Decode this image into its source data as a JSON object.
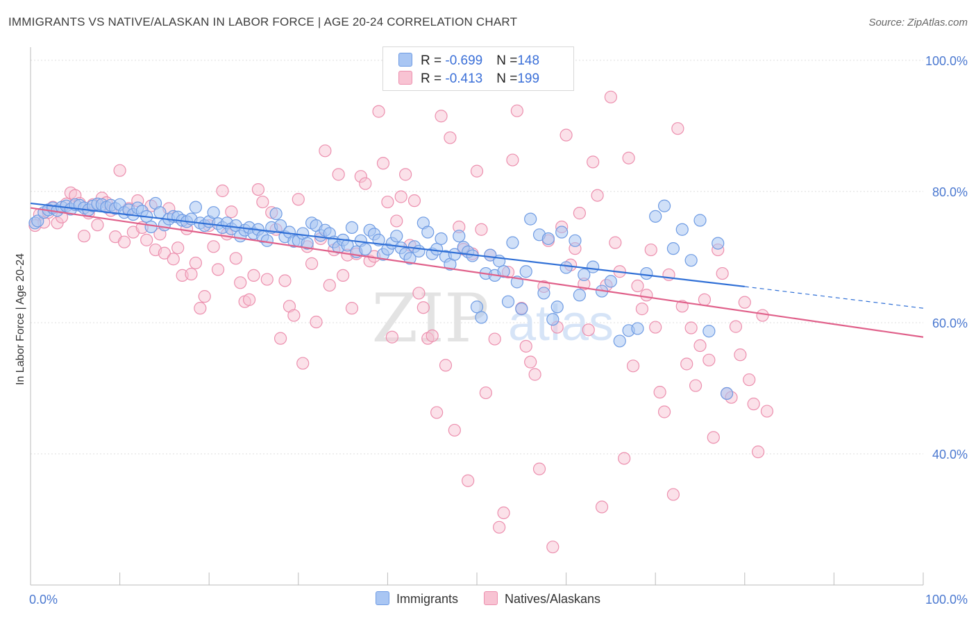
{
  "title": "IMMIGRANTS VS NATIVE/ALASKAN IN LABOR FORCE | AGE 20-24 CORRELATION CHART",
  "source": "Source: ZipAtlas.com",
  "watermark": {
    "zip": "ZIP",
    "atlas": "atlas"
  },
  "legend_top": {
    "rows": [
      {
        "r_label": "R = ",
        "r_value": "-0.699",
        "n_label": "N = ",
        "n_value": "148"
      },
      {
        "r_label": "R = ",
        "r_value": "-0.413",
        "n_label": "N = ",
        "n_value": "199"
      }
    ]
  },
  "legend_bottom": {
    "immigrants": "Immigrants",
    "natives": "Natives/Alaskans"
  },
  "colors": {
    "blue_fill": "#a9c6f3",
    "blue_stroke": "#6e9be3",
    "blue_line": "#2f6fd6",
    "pink_fill": "#f8c3d3",
    "pink_stroke": "#ec8fae",
    "pink_line": "#e0608a",
    "tick_label": "#4a78d0",
    "grid": "#dddddd"
  },
  "chart_data": {
    "type": "scatter",
    "title": "IMMIGRANTS VS NATIVE/ALASKAN IN LABOR FORCE | AGE 20-24 CORRELATION CHART",
    "xlabel": "",
    "ylabel": "In Labor Force | Age 20-24",
    "xlim": [
      0,
      100
    ],
    "ylim": [
      20,
      102
    ],
    "x_tick_labels": [
      "0.0%",
      "100.0%"
    ],
    "y_ticks": [
      40,
      60,
      80,
      100
    ],
    "y_tick_labels": [
      "40.0%",
      "60.0%",
      "80.0%",
      "100.0%"
    ],
    "legend": [
      "Immigrants",
      "Natives/Alaskans"
    ],
    "series": [
      {
        "name": "Immigrants",
        "r": -0.699,
        "n": 148,
        "trend": {
          "x0": 0,
          "y0": 78.2,
          "x1": 80,
          "y1": 65.5,
          "dash_to_x": 100,
          "dash_to_y": 62.2
        },
        "points": [
          [
            0.5,
            75.2
          ],
          [
            0.8,
            75.5
          ],
          [
            1.5,
            76.8
          ],
          [
            2,
            77.2
          ],
          [
            2.5,
            77.5
          ],
          [
            3,
            77.1
          ],
          [
            3.5,
            77.6
          ],
          [
            4,
            77.8
          ],
          [
            4.5,
            77.3
          ],
          [
            5,
            78
          ],
          [
            5.5,
            77.9
          ],
          [
            6,
            77.5
          ],
          [
            6.5,
            77.2
          ],
          [
            7,
            77.8
          ],
          [
            7.5,
            78.1
          ],
          [
            8,
            78
          ],
          [
            8.5,
            77.6
          ],
          [
            9,
            77.9
          ],
          [
            9.5,
            77.4
          ],
          [
            10,
            78
          ],
          [
            10.5,
            76.8
          ],
          [
            11,
            77.2
          ],
          [
            11.5,
            76.5
          ],
          [
            12,
            77.5
          ],
          [
            12.5,
            77
          ],
          [
            13,
            76.2
          ],
          [
            13.5,
            74.6
          ],
          [
            14,
            78.2
          ],
          [
            14.5,
            76.8
          ],
          [
            15,
            74.9
          ],
          [
            15.5,
            75.8
          ],
          [
            16,
            76.2
          ],
          [
            16.5,
            76.1
          ],
          [
            17,
            75.6
          ],
          [
            17.5,
            75.4
          ],
          [
            18,
            75.8
          ],
          [
            18.5,
            77.6
          ],
          [
            19,
            75.2
          ],
          [
            19.5,
            74.8
          ],
          [
            20,
            75.4
          ],
          [
            20.5,
            76.8
          ],
          [
            21,
            75.1
          ],
          [
            21.5,
            74.5
          ],
          [
            22,
            75.2
          ],
          [
            22.5,
            74.3
          ],
          [
            23,
            74.8
          ],
          [
            23.5,
            73.2
          ],
          [
            24,
            74.1
          ],
          [
            24.5,
            74.5
          ],
          [
            25,
            73.6
          ],
          [
            25.5,
            74.2
          ],
          [
            26,
            73.1
          ],
          [
            26.5,
            72.5
          ],
          [
            27,
            74.5
          ],
          [
            27.5,
            76.6
          ],
          [
            28,
            74.8
          ],
          [
            28.5,
            73.1
          ],
          [
            29,
            73.8
          ],
          [
            29.5,
            72.4
          ],
          [
            30,
            72.5
          ],
          [
            30.5,
            73.6
          ],
          [
            31,
            72.1
          ],
          [
            31.5,
            75.2
          ],
          [
            32,
            74.8
          ],
          [
            32.5,
            73.3
          ],
          [
            33,
            74.1
          ],
          [
            33.5,
            73.6
          ],
          [
            34,
            72.3
          ],
          [
            34.5,
            71.5
          ],
          [
            35,
            72.6
          ],
          [
            35.5,
            71.8
          ],
          [
            36,
            74.5
          ],
          [
            36.5,
            70.8
          ],
          [
            37,
            72.5
          ],
          [
            37.5,
            71.2
          ],
          [
            38,
            74.1
          ],
          [
            38.5,
            73.5
          ],
          [
            39,
            72.6
          ],
          [
            39.5,
            70.4
          ],
          [
            40,
            71.2
          ],
          [
            40.5,
            72.1
          ],
          [
            41,
            73.2
          ],
          [
            41.5,
            71.4
          ],
          [
            42,
            70.5
          ],
          [
            42.5,
            69.8
          ],
          [
            43,
            71.6
          ],
          [
            43.5,
            70.9
          ],
          [
            44,
            75.2
          ],
          [
            44.5,
            73.8
          ],
          [
            45,
            70.5
          ],
          [
            45.5,
            71.2
          ],
          [
            46,
            72.8
          ],
          [
            46.5,
            70.1
          ],
          [
            47,
            68.9
          ],
          [
            47.5,
            70.4
          ],
          [
            48,
            73.2
          ],
          [
            48.5,
            71.5
          ],
          [
            49,
            70.8
          ],
          [
            49.5,
            70.2
          ],
          [
            50,
            62.4
          ],
          [
            50.5,
            60.8
          ],
          [
            51,
            67.5
          ],
          [
            51.5,
            70.3
          ],
          [
            52,
            67.2
          ],
          [
            52.5,
            69.4
          ],
          [
            53,
            67.8
          ],
          [
            53.5,
            63.2
          ],
          [
            54,
            72.2
          ],
          [
            54.5,
            66.2
          ],
          [
            55,
            62.1
          ],
          [
            55.5,
            67.8
          ],
          [
            56,
            75.8
          ],
          [
            57,
            73.4
          ],
          [
            57.5,
            64.5
          ],
          [
            58,
            72.8
          ],
          [
            58.5,
            60.5
          ],
          [
            59,
            62.4
          ],
          [
            59.5,
            73.8
          ],
          [
            60,
            68.4
          ],
          [
            61,
            72.5
          ],
          [
            61.5,
            64.2
          ],
          [
            62,
            67.3
          ],
          [
            63,
            68.5
          ],
          [
            64,
            64.8
          ],
          [
            65,
            66.3
          ],
          [
            66,
            57.2
          ],
          [
            67,
            58.8
          ],
          [
            68,
            59.1
          ],
          [
            69,
            67.5
          ],
          [
            70,
            76.2
          ],
          [
            71,
            77.8
          ],
          [
            72,
            71.3
          ],
          [
            73,
            74.2
          ],
          [
            74,
            69.5
          ],
          [
            75,
            75.6
          ],
          [
            76,
            58.7
          ],
          [
            77,
            72.1
          ],
          [
            78,
            49.2
          ]
        ]
      },
      {
        "name": "Natives/Alaskans",
        "r": -0.413,
        "n": 199,
        "trend": {
          "x0": 0,
          "y0": 77.5,
          "x1": 100,
          "y1": 57.8
        },
        "points": [
          [
            0.5,
            74.8
          ],
          [
            1,
            76.5
          ],
          [
            1.5,
            75.3
          ],
          [
            2,
            76.8
          ],
          [
            2.5,
            77.6
          ],
          [
            3,
            75.2
          ],
          [
            3.5,
            76.1
          ],
          [
            4,
            78.1
          ],
          [
            4.5,
            79.8
          ],
          [
            5,
            79.4
          ],
          [
            5.5,
            78.2
          ],
          [
            6,
            73.2
          ],
          [
            6.5,
            76.7
          ],
          [
            7,
            78
          ],
          [
            7.5,
            74.9
          ],
          [
            8,
            79
          ],
          [
            8.5,
            78.3
          ],
          [
            9,
            77.1
          ],
          [
            9.5,
            73.1
          ],
          [
            10,
            83.2
          ],
          [
            10.5,
            72.3
          ],
          [
            11,
            77.4
          ],
          [
            11.5,
            73.8
          ],
          [
            12,
            78.6
          ],
          [
            12.5,
            74.5
          ],
          [
            13,
            72.6
          ],
          [
            13.5,
            77.8
          ],
          [
            14,
            71.1
          ],
          [
            14.5,
            73.5
          ],
          [
            15,
            70.6
          ],
          [
            15.5,
            77.4
          ],
          [
            16,
            69.7
          ],
          [
            16.5,
            71.4
          ],
          [
            17,
            67.2
          ],
          [
            17.5,
            74.3
          ],
          [
            18,
            67.4
          ],
          [
            18.5,
            69.1
          ],
          [
            19,
            62.2
          ],
          [
            19.5,
            64
          ],
          [
            20,
            74.8
          ],
          [
            20.5,
            71.6
          ],
          [
            21,
            68.1
          ],
          [
            21.5,
            80.1
          ],
          [
            22,
            73.5
          ],
          [
            22.5,
            76.9
          ],
          [
            23,
            69.8
          ],
          [
            23.5,
            66.1
          ],
          [
            24,
            63.2
          ],
          [
            24.5,
            63.5
          ],
          [
            25,
            67.2
          ],
          [
            25.5,
            80.3
          ],
          [
            26,
            78.4
          ],
          [
            26.5,
            66.6
          ],
          [
            27,
            76.8
          ],
          [
            27.5,
            74.2
          ],
          [
            28,
            57.6
          ],
          [
            28.5,
            66.4
          ],
          [
            29,
            62.5
          ],
          [
            29.5,
            61.1
          ],
          [
            30,
            78.8
          ],
          [
            30.5,
            53.8
          ],
          [
            31,
            71.6
          ],
          [
            31.5,
            69
          ],
          [
            32,
            60.1
          ],
          [
            32.5,
            72.8
          ],
          [
            33,
            86.2
          ],
          [
            33.5,
            65.7
          ],
          [
            34,
            71.1
          ],
          [
            34.5,
            82.6
          ],
          [
            35,
            67.2
          ],
          [
            35.5,
            70.3
          ],
          [
            36,
            62.2
          ],
          [
            36.5,
            70.5
          ],
          [
            37,
            82.3
          ],
          [
            37.5,
            81.2
          ],
          [
            38,
            69.4
          ],
          [
            38.5,
            70.1
          ],
          [
            39,
            92.2
          ],
          [
            39.5,
            84.3
          ],
          [
            40,
            78.4
          ],
          [
            40.5,
            57.8
          ],
          [
            41,
            75.5
          ],
          [
            41.5,
            79.2
          ],
          [
            42,
            82.6
          ],
          [
            42.5,
            71.8
          ],
          [
            43,
            78.6
          ],
          [
            43.5,
            64.5
          ],
          [
            44,
            62.3
          ],
          [
            44.5,
            57.6
          ],
          [
            45,
            58
          ],
          [
            45.5,
            46.3
          ],
          [
            46,
            91.5
          ],
          [
            46.5,
            53.5
          ],
          [
            47,
            88.2
          ],
          [
            47.5,
            43.6
          ],
          [
            48,
            74.6
          ],
          [
            48.5,
            71.2
          ],
          [
            49,
            35.9
          ],
          [
            49.5,
            70.5
          ],
          [
            50,
            83.1
          ],
          [
            50.5,
            74.2
          ],
          [
            51,
            49.3
          ],
          [
            51.5,
            70.3
          ],
          [
            52,
            57.5
          ],
          [
            52.5,
            28.8
          ],
          [
            53,
            31
          ],
          [
            53.5,
            67.7
          ],
          [
            54,
            84.8
          ],
          [
            54.5,
            92.3
          ],
          [
            55,
            62.2
          ],
          [
            55.5,
            56.4
          ],
          [
            56,
            54
          ],
          [
            56.5,
            52.1
          ],
          [
            57,
            37.7
          ],
          [
            57.5,
            65.5
          ],
          [
            58,
            72.5
          ],
          [
            58.5,
            25.8
          ],
          [
            59,
            59.3
          ],
          [
            59.5,
            74.6
          ],
          [
            60,
            88.6
          ],
          [
            60.5,
            68.8
          ],
          [
            61,
            71.3
          ],
          [
            61.5,
            76.7
          ],
          [
            62,
            65.9
          ],
          [
            62.5,
            58.9
          ],
          [
            63,
            84.5
          ],
          [
            63.5,
            79.4
          ],
          [
            64,
            31.9
          ],
          [
            64.5,
            65.7
          ],
          [
            65,
            94.4
          ],
          [
            65.5,
            72.2
          ],
          [
            66,
            67.8
          ],
          [
            66.5,
            39.3
          ],
          [
            67,
            85.1
          ],
          [
            67.5,
            53.4
          ],
          [
            68,
            65.6
          ],
          [
            68.5,
            62.1
          ],
          [
            69,
            64.2
          ],
          [
            69.5,
            71.1
          ],
          [
            70,
            59.3
          ],
          [
            70.5,
            49.4
          ],
          [
            71,
            46.4
          ],
          [
            71.5,
            67.3
          ],
          [
            72,
            33.8
          ],
          [
            72.5,
            89.6
          ],
          [
            73,
            62.5
          ],
          [
            73.5,
            53.7
          ],
          [
            74,
            59.2
          ],
          [
            74.5,
            50.4
          ],
          [
            75,
            56.5
          ],
          [
            75.5,
            63.5
          ],
          [
            76,
            54.3
          ],
          [
            76.5,
            42.5
          ],
          [
            77,
            71.1
          ],
          [
            77.5,
            67.5
          ],
          [
            78,
            49.2
          ],
          [
            78.5,
            48.6
          ],
          [
            79,
            59.4
          ],
          [
            79.5,
            55.1
          ],
          [
            80,
            63.1
          ],
          [
            80.5,
            51.3
          ],
          [
            81,
            47.6
          ],
          [
            81.5,
            40.3
          ],
          [
            82,
            61.1
          ],
          [
            82.5,
            46.5
          ]
        ]
      }
    ]
  }
}
